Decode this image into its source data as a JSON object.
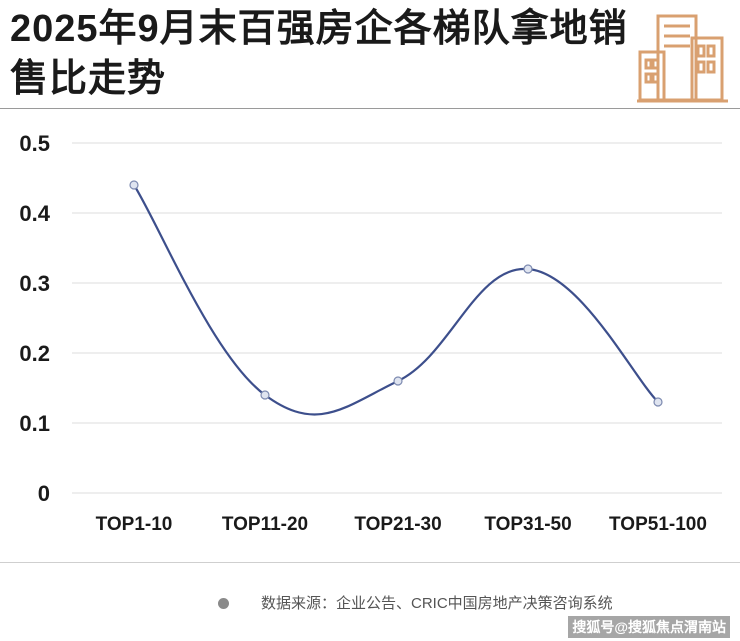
{
  "title": "2025年9月末百强房企各梯队拿地销售比走势",
  "logo_icon": "city-buildings-icon",
  "source": "数据来源：企业公告、CRIC中国房地产决策咨询系统",
  "watermark": "搜狐号@搜狐焦点渭南站",
  "colors": {
    "line": "#3d4f8c",
    "point_fill": "#dfe4f0",
    "grid": "#dddddd",
    "logo": "#d9a070"
  },
  "chart_data": {
    "type": "line",
    "categories": [
      "TOP1-10",
      "TOP11-20",
      "TOP21-30",
      "TOP31-50",
      "TOP51-100"
    ],
    "series": [
      {
        "values": [
          0.44,
          0.14,
          0.16,
          0.32,
          0.13
        ]
      }
    ],
    "yticks": [
      "0",
      "0.1",
      "0.2",
      "0.3",
      "0.4",
      "0.5"
    ],
    "ylim": [
      0,
      0.5
    ],
    "smooth": true,
    "grid": true,
    "title": "",
    "xlabel": "",
    "ylabel": ""
  }
}
